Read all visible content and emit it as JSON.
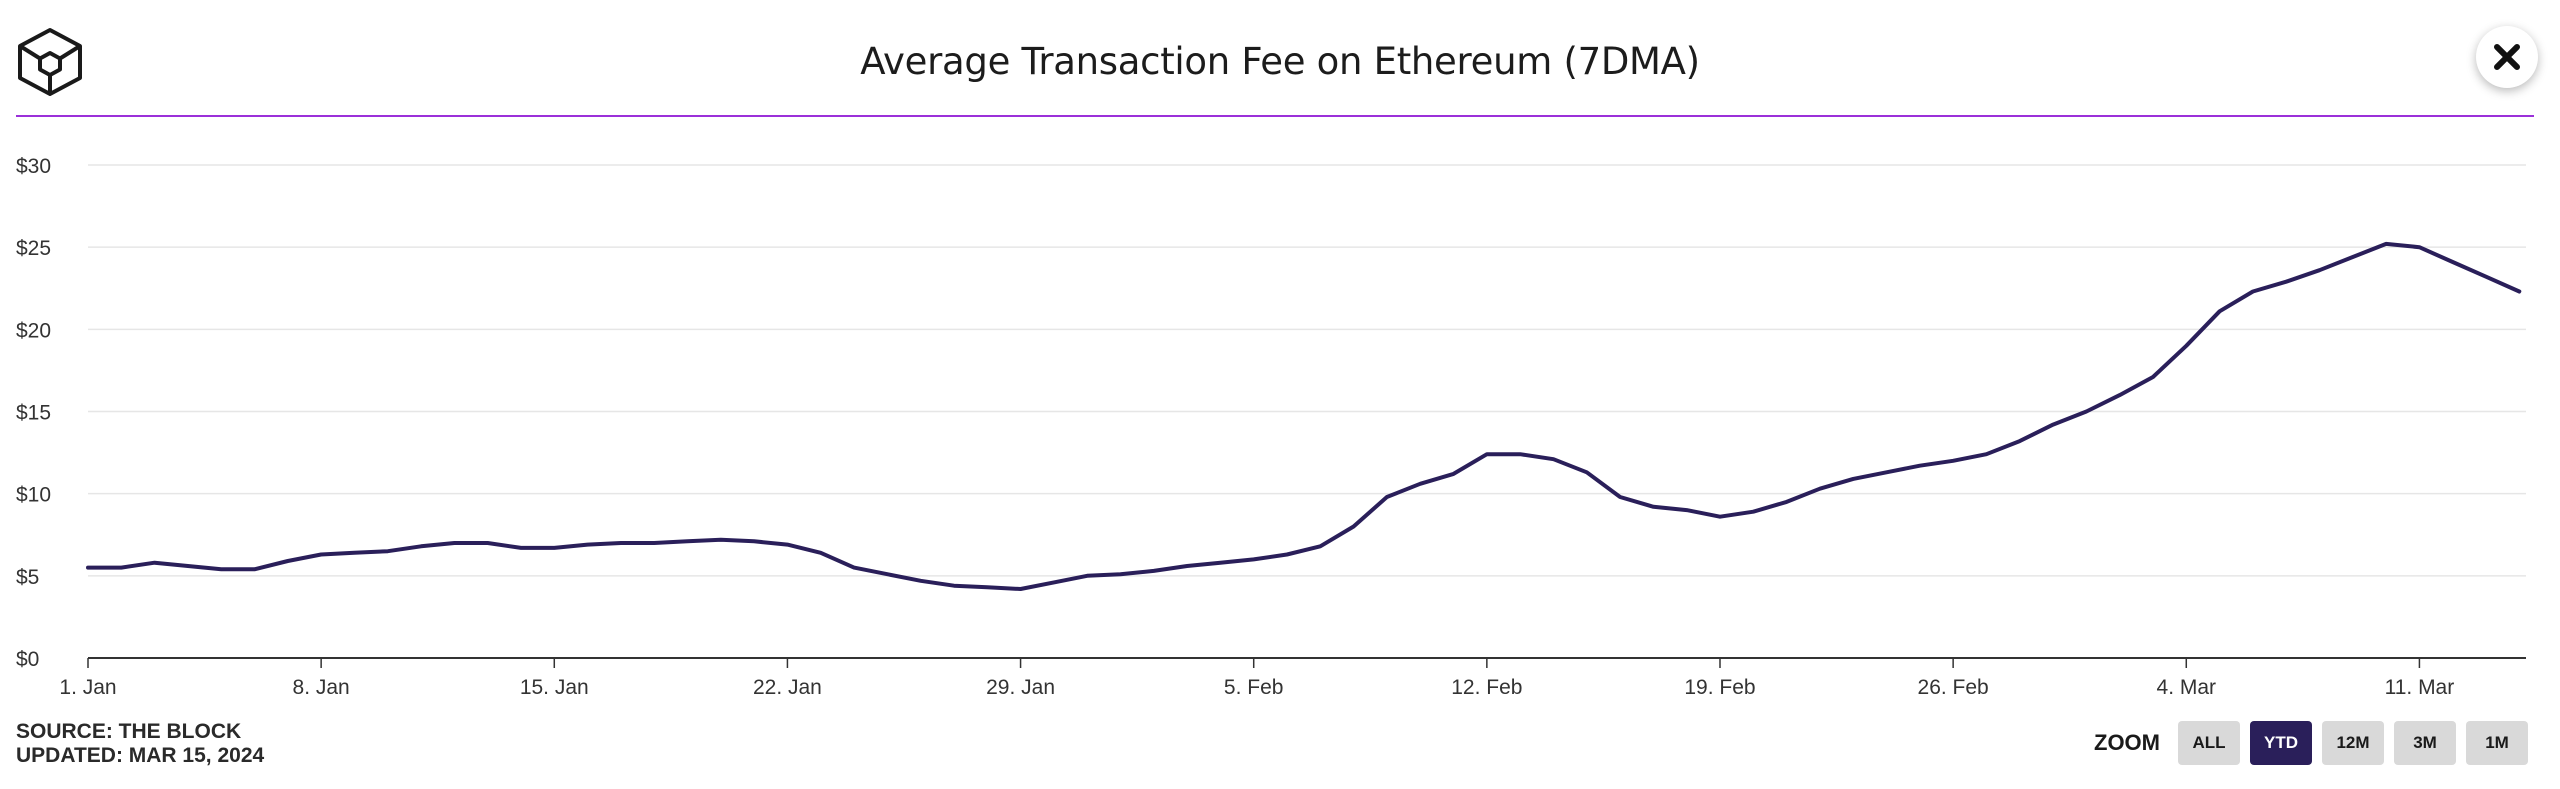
{
  "header": {
    "title": "Average Transaction Fee on Ethereum (7DMA)"
  },
  "footer": {
    "source": "SOURCE: THE BLOCK",
    "updated": "UPDATED: MAR 15, 2024"
  },
  "zoom": {
    "label": "ZOOM",
    "options": [
      "ALL",
      "YTD",
      "12M",
      "3M",
      "1M"
    ],
    "selected": "YTD"
  },
  "colors": {
    "accent": "#9b30d9",
    "line": "#2a1f5a",
    "grid": "#e6e6e6",
    "axis": "#333333"
  },
  "chart_data": {
    "type": "line",
    "x_start": "2024-01-01",
    "x_end": "2024-03-15",
    "xticks": [
      {
        "date": "2024-01-01",
        "label": "1. Jan"
      },
      {
        "date": "2024-01-08",
        "label": "8. Jan"
      },
      {
        "date": "2024-01-15",
        "label": "15. Jan"
      },
      {
        "date": "2024-01-22",
        "label": "22. Jan"
      },
      {
        "date": "2024-01-29",
        "label": "29. Jan"
      },
      {
        "date": "2024-02-05",
        "label": "5. Feb"
      },
      {
        "date": "2024-02-12",
        "label": "12. Feb"
      },
      {
        "date": "2024-02-19",
        "label": "19. Feb"
      },
      {
        "date": "2024-02-26",
        "label": "26. Feb"
      },
      {
        "date": "2024-03-04",
        "label": "4. Mar"
      },
      {
        "date": "2024-03-11",
        "label": "11. Mar"
      }
    ],
    "yticks": [
      0,
      5,
      10,
      15,
      20,
      25,
      30
    ],
    "ytick_labels": [
      "$0",
      "$5",
      "$10",
      "$15",
      "$20",
      "$25",
      "$30"
    ],
    "ylim": [
      0,
      30
    ],
    "grid": true,
    "x": [
      "2024-01-01",
      "2024-01-02",
      "2024-01-03",
      "2024-01-04",
      "2024-01-05",
      "2024-01-06",
      "2024-01-07",
      "2024-01-08",
      "2024-01-09",
      "2024-01-10",
      "2024-01-11",
      "2024-01-12",
      "2024-01-13",
      "2024-01-14",
      "2024-01-15",
      "2024-01-16",
      "2024-01-17",
      "2024-01-18",
      "2024-01-19",
      "2024-01-20",
      "2024-01-21",
      "2024-01-22",
      "2024-01-23",
      "2024-01-24",
      "2024-01-25",
      "2024-01-26",
      "2024-01-27",
      "2024-01-28",
      "2024-01-29",
      "2024-01-30",
      "2024-01-31",
      "2024-02-01",
      "2024-02-02",
      "2024-02-03",
      "2024-02-04",
      "2024-02-05",
      "2024-02-06",
      "2024-02-07",
      "2024-02-08",
      "2024-02-09",
      "2024-02-10",
      "2024-02-11",
      "2024-02-12",
      "2024-02-13",
      "2024-02-14",
      "2024-02-15",
      "2024-02-16",
      "2024-02-17",
      "2024-02-18",
      "2024-02-19",
      "2024-02-20",
      "2024-02-21",
      "2024-02-22",
      "2024-02-23",
      "2024-02-24",
      "2024-02-25",
      "2024-02-26",
      "2024-02-27",
      "2024-02-28",
      "2024-02-29",
      "2024-03-01",
      "2024-03-02",
      "2024-03-03",
      "2024-03-04",
      "2024-03-05",
      "2024-03-06",
      "2024-03-07",
      "2024-03-08",
      "2024-03-09",
      "2024-03-10",
      "2024-03-11",
      "2024-03-12",
      "2024-03-13",
      "2024-03-14"
    ],
    "series": [
      {
        "values": [
          5.5,
          5.5,
          5.8,
          5.6,
          5.4,
          5.4,
          5.9,
          6.3,
          6.4,
          6.5,
          6.8,
          7.0,
          7.0,
          6.7,
          6.7,
          6.9,
          7.0,
          7.0,
          7.1,
          7.2,
          7.1,
          6.9,
          6.4,
          5.5,
          5.1,
          4.7,
          4.4,
          4.3,
          4.2,
          4.6,
          5.0,
          5.1,
          5.3,
          5.6,
          5.8,
          6.0,
          6.3,
          6.8,
          8.0,
          9.8,
          10.6,
          11.2,
          12.4,
          12.4,
          12.1,
          11.3,
          9.8,
          9.2,
          9.0,
          8.6,
          8.9,
          9.5,
          10.3,
          10.9,
          11.3,
          11.7,
          12.0,
          12.4,
          13.2,
          14.2,
          15.0,
          16.0,
          17.1,
          19.0,
          21.1,
          22.3,
          22.9,
          23.6,
          24.4,
          25.2,
          25.0,
          24.1,
          23.2,
          22.3
        ]
      }
    ]
  }
}
